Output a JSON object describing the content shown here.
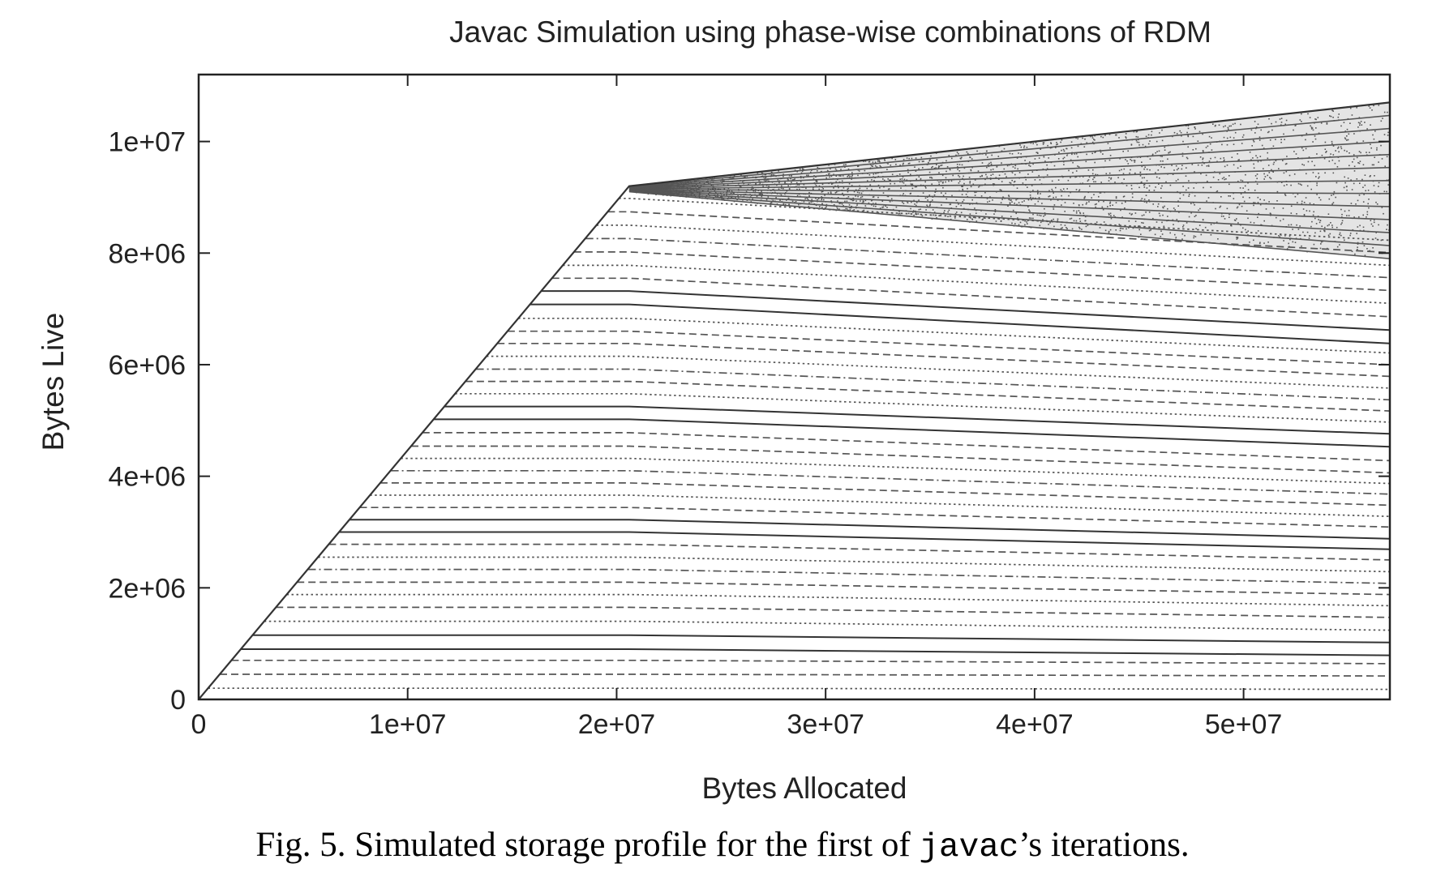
{
  "chart_data": {
    "type": "line",
    "title": "Javac Simulation using phase-wise combinations of RDM",
    "xlabel": "Bytes Allocated",
    "ylabel": "Bytes Live",
    "xlim": [
      0,
      57000000
    ],
    "ylim": [
      0,
      11200000
    ],
    "x_ticks": [
      0,
      10000000,
      20000000,
      30000000,
      40000000,
      50000000
    ],
    "x_tick_labels": [
      "0",
      "1e+07",
      "2e+07",
      "3e+07",
      "4e+07",
      "5e+07"
    ],
    "y_ticks": [
      0,
      2000000,
      4000000,
      6000000,
      8000000,
      10000000
    ],
    "y_tick_labels": [
      "0",
      "2e+06",
      "4e+06",
      "6e+06",
      "8e+06",
      "1e+07"
    ],
    "grid": false,
    "legend": "none",
    "envelope": {
      "x": [
        0,
        20600000,
        57000000
      ],
      "y": [
        0,
        9200000,
        10700000
      ]
    },
    "phase_end_x": 20600000,
    "end_x": 57000000,
    "series": [
      {
        "start_y": 200000,
        "end_y": 180000,
        "style": "dotted"
      },
      {
        "start_y": 450000,
        "end_y": 420000,
        "style": "dashed"
      },
      {
        "start_y": 700000,
        "end_y": 640000,
        "style": "dashed"
      },
      {
        "start_y": 900000,
        "end_y": 790000,
        "style": "solid"
      },
      {
        "start_y": 1150000,
        "end_y": 1020000,
        "style": "solid"
      },
      {
        "start_y": 1400000,
        "end_y": 1240000,
        "style": "dotted"
      },
      {
        "start_y": 1650000,
        "end_y": 1470000,
        "style": "dashed"
      },
      {
        "start_y": 1880000,
        "end_y": 1680000,
        "style": "dotted"
      },
      {
        "start_y": 2100000,
        "end_y": 1880000,
        "style": "dashed"
      },
      {
        "start_y": 2330000,
        "end_y": 2080000,
        "style": "dashdot"
      },
      {
        "start_y": 2550000,
        "end_y": 2290000,
        "style": "dotted"
      },
      {
        "start_y": 2780000,
        "end_y": 2500000,
        "style": "dashed"
      },
      {
        "start_y": 3000000,
        "end_y": 2690000,
        "style": "solid"
      },
      {
        "start_y": 3220000,
        "end_y": 2880000,
        "style": "solid"
      },
      {
        "start_y": 3440000,
        "end_y": 3090000,
        "style": "dashed"
      },
      {
        "start_y": 3660000,
        "end_y": 3280000,
        "style": "dotted"
      },
      {
        "start_y": 3880000,
        "end_y": 3480000,
        "style": "dashed"
      },
      {
        "start_y": 4100000,
        "end_y": 3680000,
        "style": "dashdot"
      },
      {
        "start_y": 4320000,
        "end_y": 3870000,
        "style": "dotted"
      },
      {
        "start_y": 4540000,
        "end_y": 4060000,
        "style": "dashed"
      },
      {
        "start_y": 4780000,
        "end_y": 4280000,
        "style": "dashed"
      },
      {
        "start_y": 5020000,
        "end_y": 4530000,
        "style": "solid"
      },
      {
        "start_y": 5250000,
        "end_y": 4760000,
        "style": "solid"
      },
      {
        "start_y": 5480000,
        "end_y": 4970000,
        "style": "dotted"
      },
      {
        "start_y": 5700000,
        "end_y": 5170000,
        "style": "dashed"
      },
      {
        "start_y": 5920000,
        "end_y": 5370000,
        "style": "dashdot"
      },
      {
        "start_y": 6150000,
        "end_y": 5580000,
        "style": "dotted"
      },
      {
        "start_y": 6380000,
        "end_y": 5790000,
        "style": "dashed"
      },
      {
        "start_y": 6600000,
        "end_y": 6000000,
        "style": "dashed"
      },
      {
        "start_y": 6830000,
        "end_y": 6210000,
        "style": "dotted"
      },
      {
        "start_y": 7080000,
        "end_y": 6380000,
        "style": "solid"
      },
      {
        "start_y": 7320000,
        "end_y": 6620000,
        "style": "solid"
      },
      {
        "start_y": 7550000,
        "end_y": 6860000,
        "style": "dashed"
      },
      {
        "start_y": 7780000,
        "end_y": 7100000,
        "style": "dotted"
      },
      {
        "start_y": 8020000,
        "end_y": 7330000,
        "style": "dashed"
      },
      {
        "start_y": 8260000,
        "end_y": 7560000,
        "style": "dashdot"
      },
      {
        "start_y": 8500000,
        "end_y": 7780000,
        "style": "dotted"
      },
      {
        "start_y": 8740000,
        "end_y": 8010000,
        "style": "dashed"
      },
      {
        "start_y": 8980000,
        "end_y": 8230000,
        "style": "dotted"
      }
    ],
    "stippled_region": {
      "lower": {
        "start_y": 9100000,
        "end_y": 7900000
      },
      "upper": {
        "start_y": 9200000,
        "end_y": 10700000
      },
      "band_count": 12
    }
  },
  "caption": {
    "prefix": "Fig. 5. Simulated storage profile for the first of ",
    "code": "javac",
    "suffix": "’s iterations."
  }
}
